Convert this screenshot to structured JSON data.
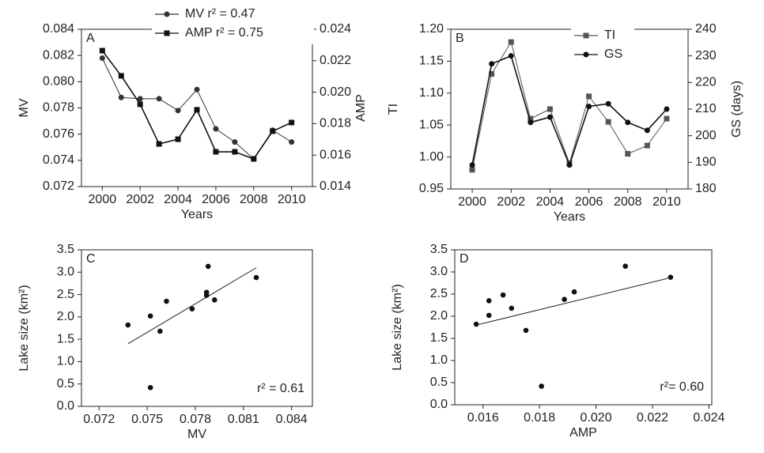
{
  "chart_data": [
    {
      "type": "line",
      "panel_label": "A",
      "xlabel": "Years",
      "ylabel": "MV",
      "y2label": "AMP",
      "x": [
        2000,
        2001,
        2002,
        2003,
        2004,
        2005,
        2006,
        2007,
        2008,
        2009,
        2010
      ],
      "xlim": [
        1998.9,
        2011.1
      ],
      "xticks": [
        2000,
        2002,
        2004,
        2006,
        2008,
        2010
      ],
      "ylim": [
        0.072,
        0.084
      ],
      "yticks": [
        0.072,
        0.074,
        0.076,
        0.078,
        {
          "value": 0.08,
          "label": "0.080"
        },
        0.082,
        0.084
      ],
      "y2lim": [
        0.014,
        0.024
      ],
      "y2ticks": [
        0.014,
        0.016,
        0.018,
        {
          "value": 0.02,
          "label": "0.020"
        },
        0.022,
        0.024
      ],
      "legend": "top-right",
      "series": [
        {
          "name": "MV r² = 0.47",
          "color": "#333333",
          "marker": "circle",
          "values": [
            0.0818,
            0.0788,
            0.0787,
            0.0787,
            0.0778,
            0.0794,
            0.0764,
            0.0754,
            0.0741,
            0.0763,
            0.0754
          ]
        },
        {
          "name": "AMP r² = 0.75",
          "color": "#111111",
          "marker": "square",
          "axis": "y2",
          "values": [
            0.02264,
            0.02104,
            0.01923,
            0.01671,
            0.01701,
            0.01888,
            0.01621,
            0.01621,
            0.01576,
            0.01752,
            0.01807
          ]
        }
      ]
    },
    {
      "type": "line",
      "panel_label": "B",
      "xlabel": "Years",
      "ylabel": "TI",
      "y2label": "GS (days)",
      "x": [
        2000,
        2001,
        2002,
        2003,
        2004,
        2005,
        2006,
        2007,
        2008,
        2009,
        2010
      ],
      "xlim": [
        1998.9,
        2011.1
      ],
      "xticks": [
        2000,
        2002,
        2004,
        2006,
        2008,
        2010
      ],
      "ylim": [
        0.95,
        1.2
      ],
      "yticks": [
        0.95,
        {
          "value": 1,
          "label": "1.00"
        },
        1.05,
        {
          "value": 1.1,
          "label": "1.10"
        },
        1.15,
        {
          "value": 1.2,
          "label": "1.20"
        }
      ],
      "y2lim": [
        180,
        240
      ],
      "y2ticks": [
        180,
        190,
        200,
        210,
        220,
        230,
        240
      ],
      "legend": "top-right",
      "series": [
        {
          "name": "TI",
          "color": "#555555",
          "marker": "square",
          "values": [
            0.98,
            1.13,
            1.18,
            1.06,
            1.075,
            0.99,
            1.095,
            1.055,
            1.005,
            1.018,
            1.06
          ]
        },
        {
          "name": "GS",
          "color": "#111111",
          "marker": "circle",
          "axis": "y2",
          "values": [
            189,
            227,
            230,
            205,
            207,
            189,
            211,
            212,
            205,
            202,
            210
          ]
        }
      ]
    },
    {
      "type": "scatter",
      "panel_label": "C",
      "xlabel": "MV",
      "ylabel": "Lake size (km²)",
      "annotation": "r² = 0.61",
      "x": [
        0.0738,
        0.0752,
        0.0752,
        0.0758,
        0.0762,
        0.0778,
        0.0787,
        0.0787,
        0.0788,
        0.0792,
        0.0818
      ],
      "values": [
        1.82,
        2.02,
        0.42,
        1.68,
        2.35,
        2.18,
        2.55,
        2.48,
        3.13,
        2.38,
        2.88
      ],
      "color": "#111111",
      "xlim": [
        0.0709,
        0.0853
      ],
      "xticks": [
        0.072,
        0.075,
        0.078,
        0.081,
        0.084
      ],
      "ylim": [
        0,
        3.5
      ],
      "yticks": [
        {
          "value": 0,
          "label": "0.0"
        },
        0.5,
        {
          "value": 1,
          "label": "1.0"
        },
        1.5,
        {
          "value": 2,
          "label": "2.0"
        },
        2.5,
        {
          "value": 3,
          "label": "3.0"
        },
        3.5
      ],
      "trendline": {
        "x": [
          0.0738,
          0.0818
        ],
        "y": [
          1.4,
          3.1
        ]
      }
    },
    {
      "type": "scatter",
      "panel_label": "D",
      "xlabel": "AMP",
      "ylabel": "Lake size (km²)",
      "annotation": "r²= 0.60",
      "x": [
        0.01576,
        0.01621,
        0.01621,
        0.01671,
        0.01701,
        0.01752,
        0.01807,
        0.01888,
        0.01923,
        0.02104,
        0.02264
      ],
      "values": [
        1.82,
        2.02,
        2.35,
        2.48,
        2.18,
        1.68,
        0.42,
        2.38,
        2.55,
        3.13,
        2.88
      ],
      "color": "#111111",
      "xlim": [
        0.015,
        0.0241
      ],
      "xticks": [
        0.016,
        0.018,
        {
          "value": 0.02,
          "label": "0.020"
        },
        0.022,
        0.024
      ],
      "ylim": [
        0,
        3.5
      ],
      "yticks": [
        {
          "value": 0,
          "label": "0.0"
        },
        0.5,
        {
          "value": 1,
          "label": "1.0"
        },
        1.5,
        {
          "value": 2,
          "label": "2.0"
        },
        2.5,
        {
          "value": 3,
          "label": "3.0"
        },
        3.5
      ],
      "trendline": {
        "x": [
          0.01576,
          0.02264
        ],
        "y": [
          1.8,
          2.87
        ]
      }
    }
  ]
}
